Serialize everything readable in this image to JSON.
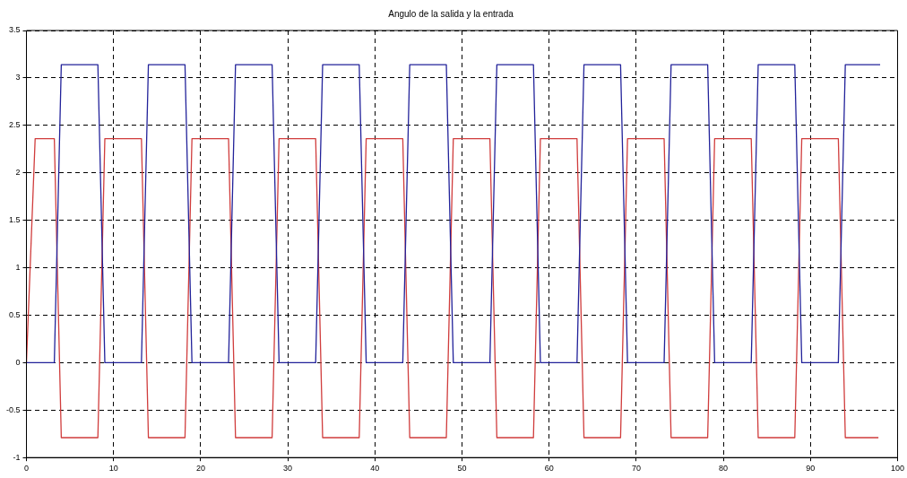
{
  "chart_data": {
    "type": "line",
    "title": "Angulo de la salida y la entrada",
    "series": [
      {
        "color": "#22229a",
        "x": [
          0,
          3.2,
          4,
          8.2,
          9,
          13.2,
          14,
          18.2,
          19,
          23.2,
          24,
          28.2,
          29,
          33.2,
          34,
          38.2,
          39,
          43.2,
          44,
          48.2,
          49,
          53.2,
          54,
          58.2,
          59,
          63.2,
          64,
          68.2,
          69,
          73.2,
          74,
          78.2,
          79,
          83.2,
          84,
          88.2,
          89,
          93.2,
          94,
          98
        ],
        "values": [
          0,
          0,
          3.14,
          3.14,
          0,
          0,
          3.14,
          3.14,
          0,
          0,
          3.14,
          3.14,
          0,
          0,
          3.14,
          3.14,
          0,
          0,
          3.14,
          3.14,
          0,
          0,
          3.14,
          3.14,
          0,
          0,
          3.14,
          3.14,
          0,
          0,
          3.14,
          3.14,
          0,
          0,
          3.14,
          3.14,
          0,
          0,
          3.14,
          3.14
        ]
      },
      {
        "color": "#d03c3c",
        "x": [
          0,
          1,
          3.2,
          4,
          8.2,
          9,
          13.2,
          14,
          18.2,
          19,
          23.2,
          24,
          28.2,
          29,
          33.2,
          34,
          38.2,
          39,
          43.2,
          44,
          48.2,
          49,
          53.2,
          54,
          58.2,
          59,
          63.2,
          64,
          68.2,
          69,
          73.2,
          74,
          78.2,
          79,
          83.2,
          84,
          88.2,
          89,
          93.2,
          94,
          97.8
        ],
        "values": [
          0,
          2.36,
          2.36,
          -0.79,
          -0.79,
          2.36,
          2.36,
          -0.79,
          -0.79,
          2.36,
          2.36,
          -0.79,
          -0.79,
          2.36,
          2.36,
          -0.79,
          -0.79,
          2.36,
          2.36,
          -0.79,
          -0.79,
          2.36,
          2.36,
          -0.79,
          -0.79,
          2.36,
          2.36,
          -0.79,
          -0.79,
          2.36,
          2.36,
          -0.79,
          -0.79,
          2.36,
          2.36,
          -0.79,
          -0.79,
          2.36,
          2.36,
          -0.79,
          -0.79
        ]
      }
    ],
    "xlim": [
      0,
      100
    ],
    "xticks": [
      0,
      10,
      20,
      30,
      40,
      50,
      60,
      70,
      80,
      90,
      100
    ],
    "ylim": [
      -1,
      3.5
    ],
    "yticks": [
      -1,
      -0.5,
      0,
      0.5,
      1,
      1.5,
      2,
      2.5,
      3,
      3.5
    ],
    "grid": true,
    "legend": false,
    "marker": "none",
    "line_style": "solid"
  }
}
